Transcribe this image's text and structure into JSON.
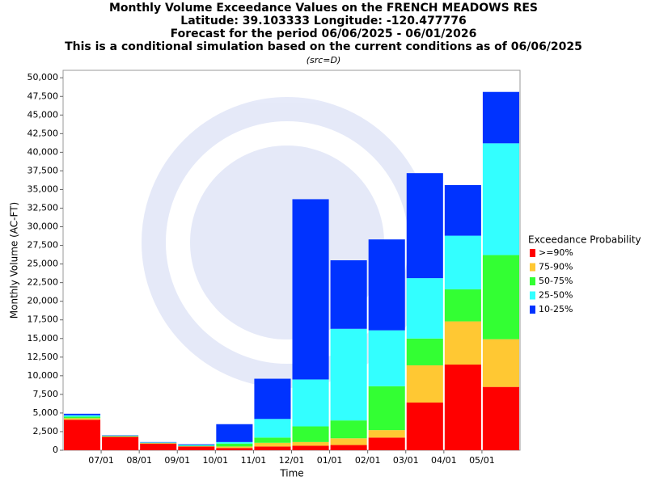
{
  "chart_data": {
    "type": "stacked_bar",
    "title": "Monthly Volume Exceedance Values on the FRENCH MEADOWS RES",
    "subtitles": [
      "Latitude: 39.103333 Longitude: -120.477776",
      "Forecast for the period 06/06/2025 - 06/01/2026",
      "This is a conditional simulation based on the current conditions as of 06/06/2025"
    ],
    "source_note": "(src=D)",
    "x_label": "Time",
    "y_label": "Monthly Volume (AC-FT)",
    "legend_title": "Exceedance Probability",
    "categories": [
      "07/01",
      "08/01",
      "09/01",
      "10/01",
      "11/01",
      "12/01",
      "01/01",
      "02/01",
      "03/01",
      "04/01",
      "05/01",
      null
    ],
    "series": [
      {
        "name": ">=90%",
        "color": "#ff0000",
        "values": [
          4100,
          1800,
          900,
          500,
          300,
          500,
          600,
          700,
          1700,
          6400,
          11500,
          8500
        ]
      },
      {
        "name": "75-90%",
        "color": "#ffc833",
        "values": [
          200,
          50,
          50,
          50,
          200,
          500,
          500,
          900,
          1000,
          5000,
          5800,
          6400
        ]
      },
      {
        "name": "50-75%",
        "color": "#33ff33",
        "values": [
          200,
          50,
          50,
          50,
          400,
          700,
          2100,
          2400,
          5900,
          3600,
          4300,
          11300
        ]
      },
      {
        "name": "25-50%",
        "color": "#33ffff",
        "values": [
          200,
          50,
          50,
          100,
          200,
          2500,
          6300,
          12300,
          7500,
          8100,
          7200,
          15000
        ]
      },
      {
        "name": "10-25%",
        "color": "#0033ff",
        "values": [
          200,
          50,
          50,
          100,
          2400,
          5400,
          24200,
          9200,
          12200,
          14100,
          6800,
          6900
        ]
      }
    ],
    "ylim": [
      0,
      51000
    ],
    "yticks": [
      0,
      {
        "value": 2500,
        "label": "2,500"
      },
      {
        "value": 5000,
        "label": "5,000"
      },
      {
        "value": 7500,
        "label": "7,500"
      },
      {
        "value": 10000,
        "label": "10,000"
      },
      {
        "value": 12500,
        "label": "12,500"
      },
      {
        "value": 15000,
        "label": "15,000"
      },
      {
        "value": 17500,
        "label": "17,500"
      },
      {
        "value": 20000,
        "label": "20,000"
      },
      {
        "value": 22500,
        "label": "22,500"
      },
      {
        "value": 25000,
        "label": "25,000"
      },
      {
        "value": 27500,
        "label": "27,500"
      },
      {
        "value": 30000,
        "label": "30,000"
      },
      {
        "value": 32500,
        "label": "32,500"
      },
      {
        "value": 35000,
        "label": "35,000"
      },
      {
        "value": 37500,
        "label": "37,500"
      },
      {
        "value": 40000,
        "label": "40,000"
      },
      {
        "value": 42500,
        "label": "42,500"
      },
      {
        "value": 45000,
        "label": "45,000"
      },
      {
        "value": 47500,
        "label": "47,500"
      },
      {
        "value": 50000,
        "label": "50,000"
      }
    ],
    "grid": false,
    "legend": "right"
  }
}
